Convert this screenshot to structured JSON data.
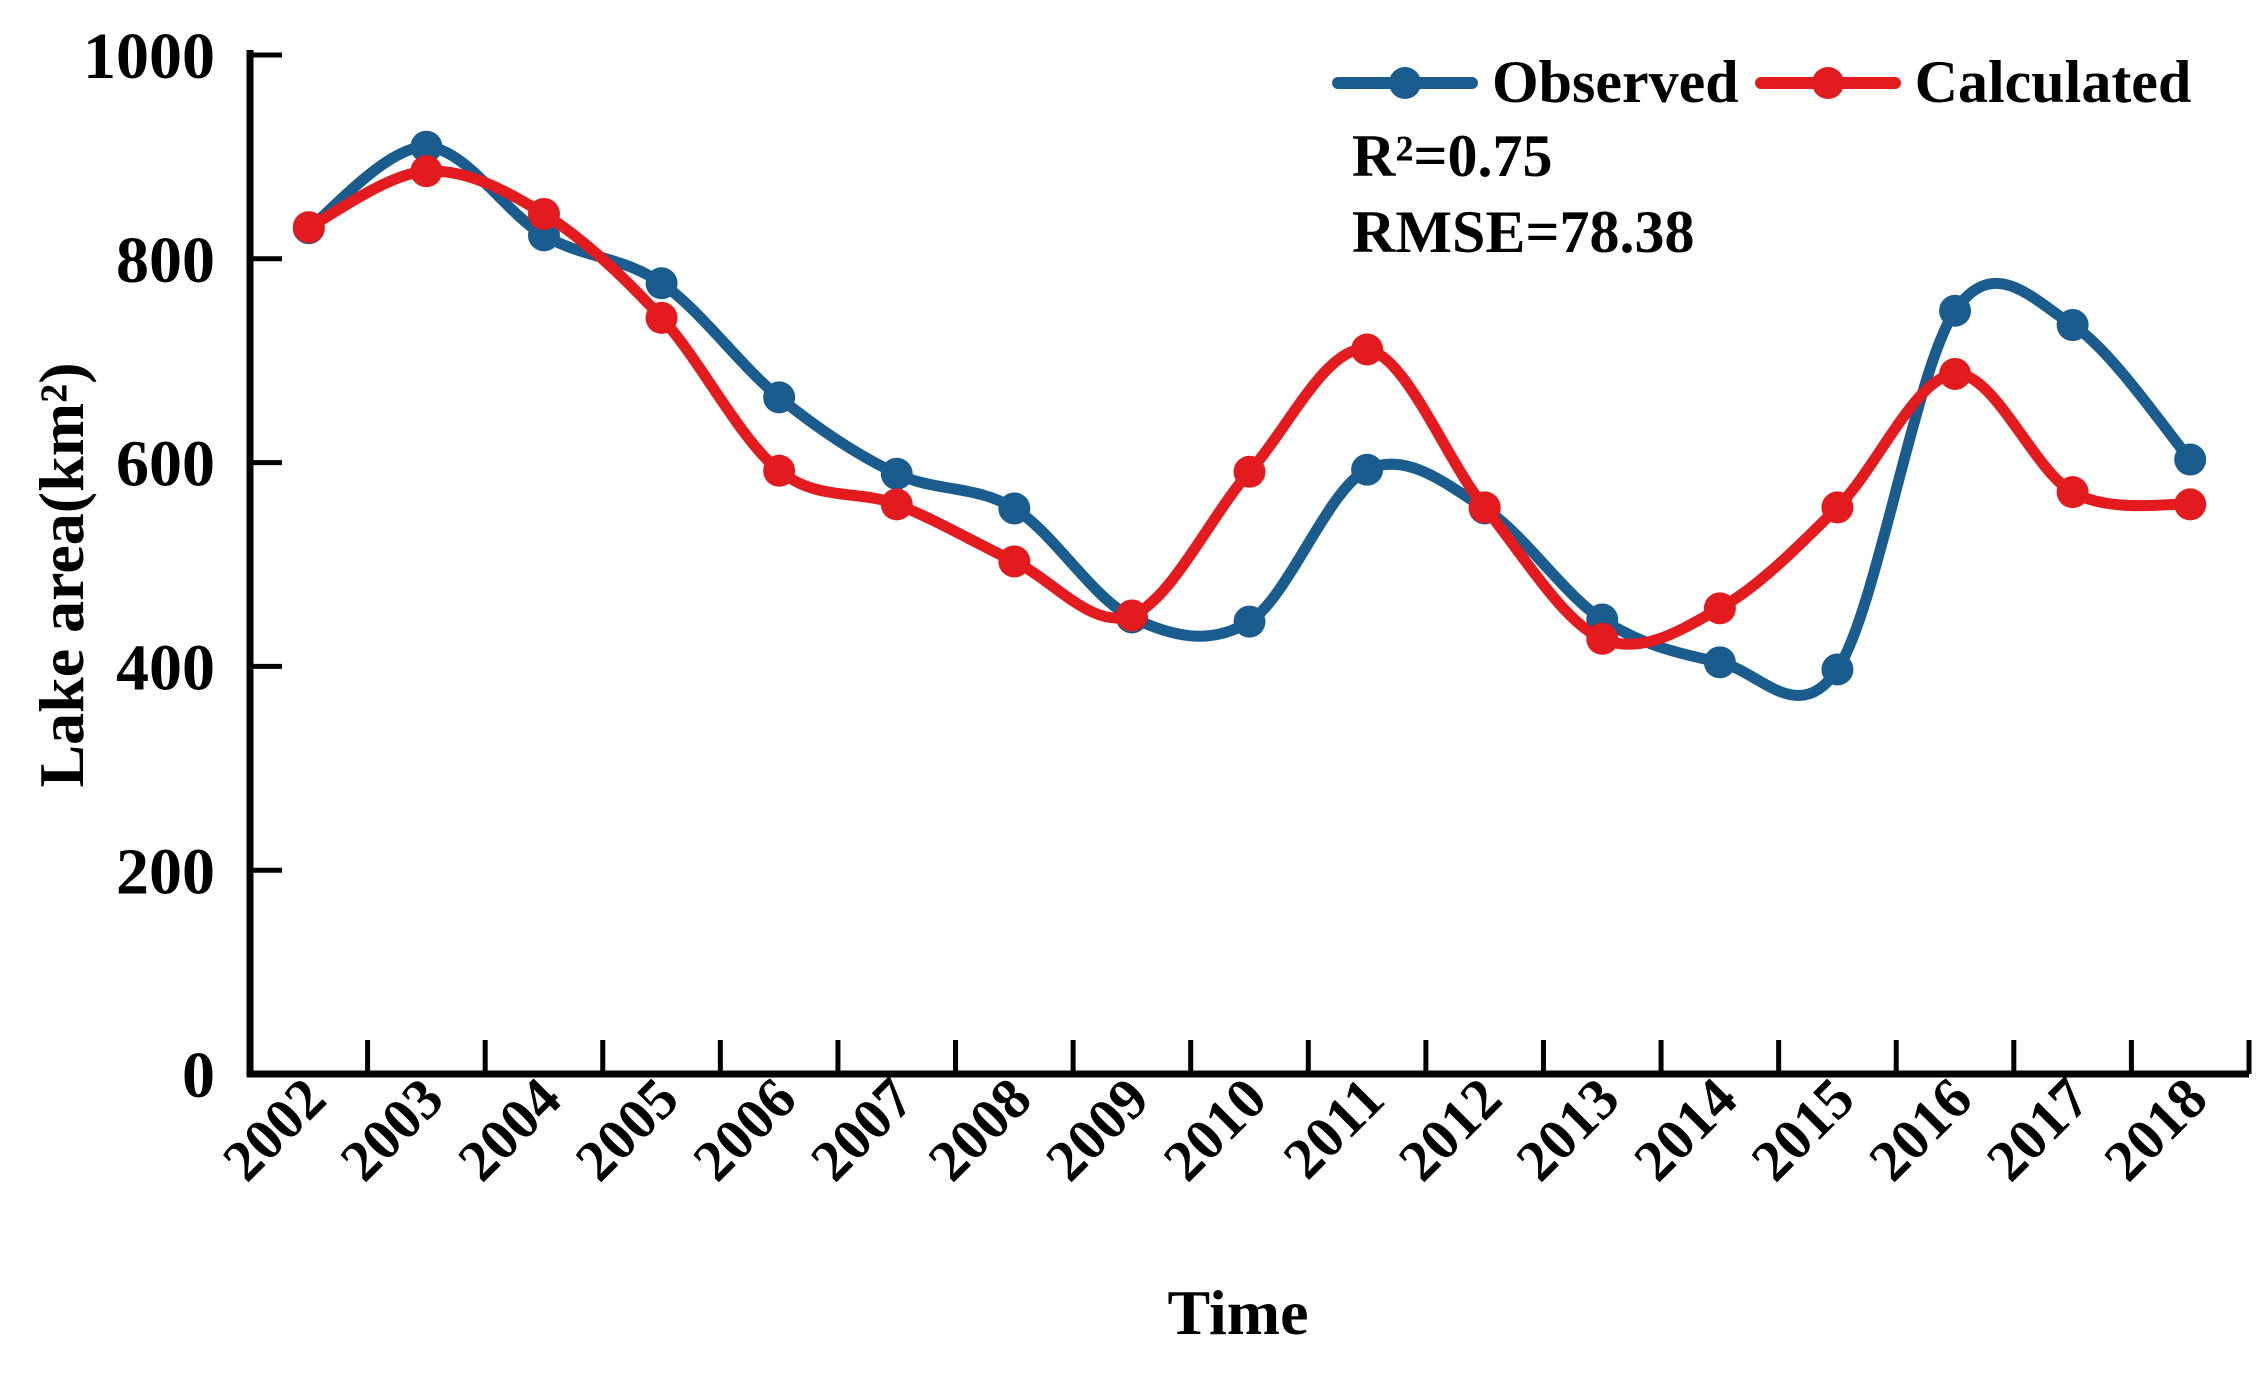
{
  "figure": {
    "y_axis_title": "Lake area(km²)",
    "x_axis_title": "Time",
    "annotations": {
      "r2": "R²=0.75",
      "rmse": "RMSE=78.38"
    },
    "axis_color": "#000000",
    "background_color": "#ffffff"
  },
  "chart_data": {
    "type": "line",
    "smooth": true,
    "markers": "circle",
    "categories": [
      "2002",
      "2003",
      "2004",
      "2005",
      "2006",
      "2007",
      "2008",
      "2009",
      "2010",
      "2011",
      "2012",
      "2013",
      "2014",
      "2015",
      "2016",
      "2017",
      "2018"
    ],
    "series": [
      {
        "name": "Observed",
        "color": "#1B5C8F",
        "values": [
          830,
          910,
          823,
          776,
          664,
          589,
          555,
          448,
          444,
          593,
          555,
          446,
          404,
          397,
          749,
          735,
          603
        ]
      },
      {
        "name": "Calculated",
        "color": "#E31B1E",
        "values": [
          831,
          886,
          844,
          742,
          592,
          559,
          503,
          450,
          591,
          711,
          556,
          427,
          457,
          556,
          687,
          571,
          559
        ]
      }
    ],
    "title": "",
    "xlabel": "Time",
    "ylabel": "Lake area(km²)",
    "ylim": [
      0,
      1000
    ],
    "y_ticks": [
      0,
      200,
      400,
      600,
      800,
      1000
    ],
    "grid": false,
    "legend_position": "top-right",
    "annotations": [
      "R²=0.75",
      "RMSE=78.38"
    ]
  }
}
